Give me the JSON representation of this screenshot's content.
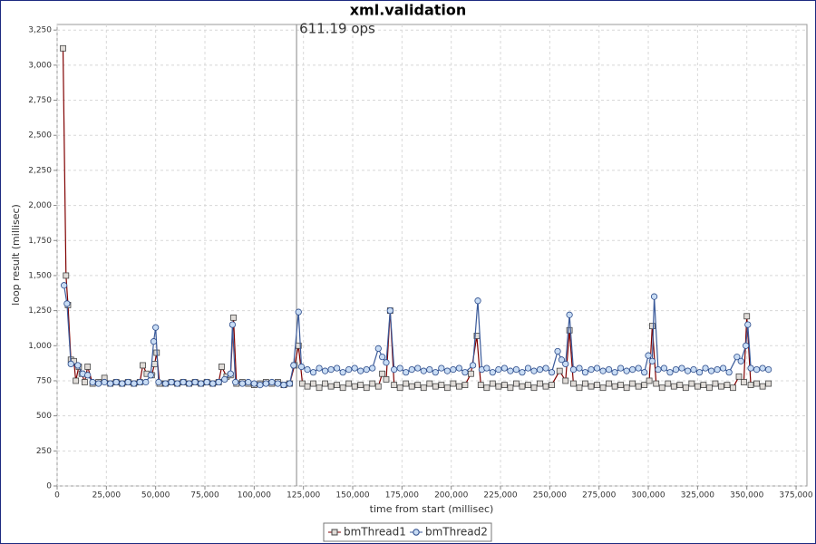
{
  "chart_data": {
    "type": "line",
    "title": "xml.validation",
    "x_label": "time from start (millisec)",
    "y_label": "loop result (millisec)",
    "annotation": {
      "x": 121500,
      "label": "611.19 ops"
    },
    "xlim": [
      0,
      380500
    ],
    "ylim": [
      0,
      3290
    ],
    "grid": true,
    "legend": "bottom",
    "xticks": [
      0,
      {
        "value": 25000,
        "label": "25,000"
      },
      {
        "value": 50000,
        "label": "50,000"
      },
      {
        "value": 75000,
        "label": "75,000"
      },
      {
        "value": 100000,
        "label": "100,000"
      },
      {
        "value": 125000,
        "label": "125,000"
      },
      {
        "value": 150000,
        "label": "150,000"
      },
      {
        "value": 175000,
        "label": "175,000"
      },
      {
        "value": 200000,
        "label": "200,000"
      },
      {
        "value": 225000,
        "label": "225,000"
      },
      {
        "value": 250000,
        "label": "250,000"
      },
      {
        "value": 275000,
        "label": "275,000"
      },
      {
        "value": 300000,
        "label": "300,000"
      },
      {
        "value": 325000,
        "label": "325,000"
      },
      {
        "value": 350000,
        "label": "350,000"
      },
      {
        "value": 375000,
        "label": "375,000"
      }
    ],
    "yticks": [
      0,
      250,
      500,
      750,
      {
        "value": 1000,
        "label": "1,000"
      },
      {
        "value": 1250,
        "label": "1,250"
      },
      {
        "value": 1500,
        "label": "1,500"
      },
      {
        "value": 1750,
        "label": "1,750"
      },
      {
        "value": 2000,
        "label": "2,000"
      },
      {
        "value": 2250,
        "label": "2,250"
      },
      {
        "value": 2500,
        "label": "2,500"
      },
      {
        "value": 2750,
        "label": "2,750"
      },
      {
        "value": 3000,
        "label": "3,000"
      },
      {
        "value": 3250,
        "label": "3,250"
      }
    ],
    "series": [
      {
        "name": "bmThread1",
        "color": "#800000",
        "marker": "square",
        "marker_fill": "#e0dcd8",
        "x": [
          3000,
          4500,
          5500,
          7000,
          8500,
          9500,
          11000,
          12500,
          14000,
          15500,
          18000,
          21000,
          24000,
          27000,
          30000,
          33000,
          36000,
          39000,
          42000,
          43500,
          45500,
          48000,
          49500,
          50500,
          52000,
          55000,
          58000,
          61000,
          64000,
          67000,
          70000,
          73000,
          76000,
          79000,
          82000,
          83500,
          86000,
          88000,
          89500,
          91000,
          94000,
          97000,
          100000,
          103000,
          106000,
          109000,
          112000,
          115000,
          118000,
          120500,
          122500,
          124500,
          127000,
          130000,
          133000,
          136000,
          139000,
          142000,
          145000,
          148000,
          151000,
          154000,
          157000,
          160000,
          163000,
          165000,
          167000,
          169000,
          171000,
          174000,
          177000,
          180000,
          183000,
          186000,
          189000,
          192000,
          195000,
          198000,
          201000,
          204000,
          207000,
          210000,
          213000,
          215000,
          218000,
          221000,
          224000,
          227000,
          230000,
          233000,
          236000,
          239000,
          242000,
          245000,
          248000,
          251000,
          255000,
          258000,
          260000,
          262000,
          265000,
          268000,
          271000,
          274000,
          277000,
          280000,
          283000,
          286000,
          289000,
          292000,
          295000,
          298000,
          300500,
          302000,
          304000,
          307000,
          310000,
          313000,
          316000,
          319000,
          322000,
          325000,
          328000,
          331000,
          334000,
          337000,
          340000,
          343000,
          346000,
          348500,
          350000,
          352000,
          355000,
          358000,
          361000
        ],
        "values": [
          3120,
          1500,
          1290,
          900,
          890,
          750,
          850,
          800,
          740,
          850,
          730,
          740,
          770,
          730,
          740,
          730,
          740,
          730,
          740,
          860,
          800,
          790,
          870,
          950,
          730,
          730,
          740,
          730,
          740,
          730,
          740,
          730,
          740,
          730,
          740,
          850,
          780,
          790,
          1200,
          730,
          740,
          730,
          720,
          730,
          740,
          730,
          740,
          720,
          730,
          860,
          1000,
          730,
          710,
          730,
          700,
          730,
          710,
          720,
          700,
          730,
          710,
          720,
          700,
          730,
          710,
          800,
          760,
          1250,
          720,
          700,
          730,
          710,
          720,
          700,
          730,
          710,
          720,
          700,
          730,
          710,
          720,
          800,
          1070,
          720,
          700,
          730,
          710,
          720,
          700,
          730,
          710,
          720,
          700,
          730,
          710,
          720,
          820,
          750,
          1110,
          730,
          700,
          730,
          710,
          720,
          700,
          730,
          710,
          720,
          700,
          730,
          710,
          720,
          750,
          1140,
          730,
          700,
          730,
          710,
          720,
          700,
          730,
          710,
          720,
          700,
          730,
          710,
          720,
          700,
          780,
          740,
          1210,
          720,
          730,
          710,
          730
        ]
      },
      {
        "name": "bmThread2",
        "color": "#3a5a9a",
        "marker": "circle",
        "marker_fill": "#c8dcf4",
        "x": [
          3500,
          5000,
          7000,
          10500,
          13000,
          15500,
          18000,
          21000,
          24000,
          27000,
          30000,
          33000,
          36000,
          39000,
          42000,
          45000,
          47500,
          49000,
          50000,
          51500,
          55000,
          58000,
          61000,
          64000,
          67000,
          70000,
          73000,
          76000,
          79000,
          82000,
          85000,
          88000,
          89000,
          90500,
          94000,
          97000,
          100000,
          103000,
          106000,
          109000,
          112000,
          115000,
          118000,
          120000,
          122500,
          124000,
          127000,
          130000,
          133000,
          136000,
          139000,
          142000,
          145000,
          148000,
          151000,
          154000,
          157000,
          160000,
          163000,
          165000,
          167000,
          169000,
          171000,
          174000,
          177000,
          180000,
          183000,
          186000,
          189000,
          192000,
          195000,
          198000,
          201000,
          204000,
          207000,
          211000,
          213500,
          215500,
          218000,
          221000,
          224000,
          227000,
          230000,
          233000,
          236000,
          239000,
          242000,
          245000,
          248000,
          251000,
          254000,
          256000,
          258000,
          260000,
          262000,
          265000,
          268000,
          271000,
          274000,
          277000,
          280000,
          283000,
          286000,
          289000,
          292000,
          295000,
          298000,
          300000,
          302000,
          303000,
          305000,
          308000,
          311000,
          314000,
          317000,
          320000,
          323000,
          326000,
          329000,
          332000,
          335000,
          338000,
          341000,
          345000,
          347000,
          349500,
          350500,
          352000,
          355000,
          358000,
          361000
        ],
        "values": [
          1430,
          1300,
          870,
          860,
          800,
          790,
          740,
          730,
          740,
          730,
          740,
          730,
          740,
          730,
          740,
          740,
          790,
          1030,
          1130,
          740,
          730,
          740,
          730,
          740,
          730,
          740,
          730,
          740,
          730,
          740,
          760,
          800,
          1150,
          740,
          730,
          740,
          730,
          720,
          730,
          740,
          730,
          720,
          730,
          860,
          1240,
          850,
          830,
          810,
          840,
          820,
          830,
          840,
          810,
          830,
          840,
          820,
          830,
          840,
          980,
          920,
          880,
          1250,
          830,
          840,
          810,
          830,
          840,
          820,
          830,
          810,
          840,
          820,
          830,
          840,
          810,
          860,
          1320,
          830,
          840,
          810,
          830,
          840,
          820,
          830,
          810,
          840,
          820,
          830,
          840,
          810,
          960,
          900,
          870,
          1220,
          830,
          840,
          810,
          830,
          840,
          820,
          830,
          810,
          840,
          820,
          830,
          840,
          810,
          930,
          890,
          1350,
          830,
          840,
          810,
          830,
          840,
          820,
          830,
          810,
          840,
          820,
          830,
          840,
          810,
          920,
          890,
          1000,
          1150,
          840,
          830,
          840,
          830
        ]
      }
    ]
  }
}
